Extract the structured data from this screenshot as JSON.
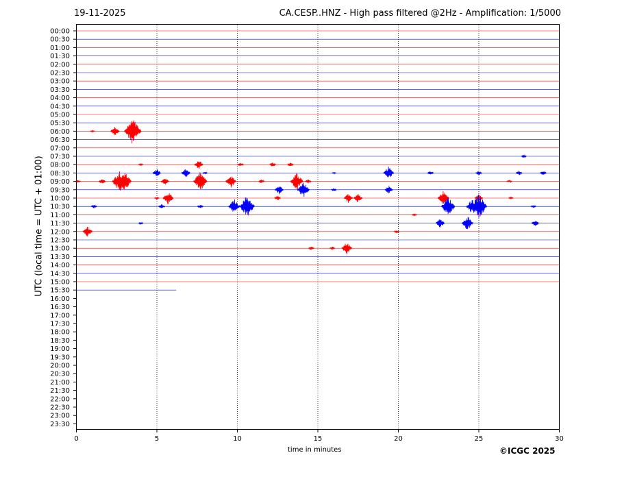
{
  "header": {
    "date": "19-11-2025",
    "title": "CA.CESP..HNZ - High pass filtered @2Hz - Amplification: 1/5000"
  },
  "footer": {
    "copyright": "©ICGC 2025"
  },
  "chart_data": {
    "type": "line",
    "chart_kind": "helicorder",
    "xlabel": "time in minutes",
    "ylabel": "UTC (local time = UTC + 01:00)",
    "xlim": [
      0,
      30
    ],
    "x_ticks": [
      0,
      5,
      10,
      15,
      20,
      25,
      30
    ],
    "grid_x": true,
    "colors": {
      "even_row": "#ff0000",
      "odd_row": "#0000ff",
      "grid": "#000000"
    },
    "rows": [
      "00:00",
      "00:30",
      "01:00",
      "01:30",
      "02:00",
      "02:30",
      "03:00",
      "03:30",
      "04:00",
      "04:30",
      "05:00",
      "05:30",
      "06:00",
      "06:30",
      "07:00",
      "07:30",
      "08:00",
      "08:30",
      "09:00",
      "09:30",
      "10:00",
      "10:30",
      "11:00",
      "11:30",
      "12:00",
      "12:30",
      "13:00",
      "13:30",
      "14:00",
      "14:30",
      "15:00",
      "15:30",
      "16:00",
      "16:30",
      "17:00",
      "17:30",
      "18:00",
      "18:30",
      "19:00",
      "19:30",
      "20:00",
      "20:30",
      "21:00",
      "21:30",
      "22:00",
      "22:30",
      "23:00",
      "23:30"
    ],
    "data_rows": 32,
    "last_row_end_minute": 6.2,
    "bursts": [
      {
        "row": "06:00",
        "minute": 1.0,
        "amplitude": 0.1
      },
      {
        "row": "06:00",
        "minute": 2.4,
        "amplitude": 0.6
      },
      {
        "row": "06:00",
        "minute": 3.4,
        "amplitude": 0.7
      },
      {
        "row": "06:00",
        "minute": 3.5,
        "amplitude": 1.6
      },
      {
        "row": "07:30",
        "minute": 27.8,
        "amplitude": 0.2
      },
      {
        "row": "08:00",
        "minute": 4.0,
        "amplitude": 0.15
      },
      {
        "row": "08:00",
        "minute": 7.6,
        "amplitude": 0.6
      },
      {
        "row": "08:00",
        "minute": 10.2,
        "amplitude": 0.25
      },
      {
        "row": "08:00",
        "minute": 12.2,
        "amplitude": 0.3
      },
      {
        "row": "08:00",
        "minute": 13.3,
        "amplitude": 0.25
      },
      {
        "row": "08:30",
        "minute": 5.0,
        "amplitude": 0.5
      },
      {
        "row": "08:30",
        "minute": 6.8,
        "amplitude": 0.6
      },
      {
        "row": "08:30",
        "minute": 8.0,
        "amplitude": 0.15
      },
      {
        "row": "08:30",
        "minute": 16.0,
        "amplitude": 0.1
      },
      {
        "row": "08:30",
        "minute": 19.4,
        "amplitude": 0.8
      },
      {
        "row": "08:30",
        "minute": 22.0,
        "amplitude": 0.3
      },
      {
        "row": "08:30",
        "minute": 25.0,
        "amplitude": 0.3
      },
      {
        "row": "08:30",
        "minute": 27.5,
        "amplitude": 0.3
      },
      {
        "row": "08:30",
        "minute": 29.0,
        "amplitude": 0.3
      },
      {
        "row": "09:00",
        "minute": 0.1,
        "amplitude": 0.2
      },
      {
        "row": "09:00",
        "minute": 1.6,
        "amplitude": 0.35
      },
      {
        "row": "09:00",
        "minute": 2.7,
        "amplitude": 1.4
      },
      {
        "row": "09:00",
        "minute": 3.0,
        "amplitude": 1.2
      },
      {
        "row": "09:00",
        "minute": 5.5,
        "amplitude": 0.5
      },
      {
        "row": "09:00",
        "minute": 7.7,
        "amplitude": 1.2
      },
      {
        "row": "09:00",
        "minute": 9.6,
        "amplitude": 0.8
      },
      {
        "row": "09:00",
        "minute": 11.5,
        "amplitude": 0.25
      },
      {
        "row": "09:00",
        "minute": 13.7,
        "amplitude": 1.1
      },
      {
        "row": "09:00",
        "minute": 14.4,
        "amplitude": 0.3
      },
      {
        "row": "09:00",
        "minute": 26.9,
        "amplitude": 0.2
      },
      {
        "row": "09:30",
        "minute": 12.6,
        "amplitude": 0.6
      },
      {
        "row": "09:30",
        "minute": 14.1,
        "amplitude": 1.0
      },
      {
        "row": "09:30",
        "minute": 16.0,
        "amplitude": 0.2
      },
      {
        "row": "09:30",
        "minute": 19.4,
        "amplitude": 0.5
      },
      {
        "row": "10:00",
        "minute": 5.0,
        "amplitude": 0.15
      },
      {
        "row": "10:00",
        "minute": 5.7,
        "amplitude": 0.8
      },
      {
        "row": "10:00",
        "minute": 12.5,
        "amplitude": 0.3
      },
      {
        "row": "10:00",
        "minute": 16.9,
        "amplitude": 0.6
      },
      {
        "row": "10:00",
        "minute": 17.5,
        "amplitude": 0.6
      },
      {
        "row": "10:00",
        "minute": 22.8,
        "amplitude": 0.9
      },
      {
        "row": "10:00",
        "minute": 25.0,
        "amplitude": 0.5
      },
      {
        "row": "10:00",
        "minute": 27.0,
        "amplitude": 0.15
      },
      {
        "row": "10:30",
        "minute": 1.1,
        "amplitude": 0.25
      },
      {
        "row": "10:30",
        "minute": 5.3,
        "amplitude": 0.3
      },
      {
        "row": "10:30",
        "minute": 7.7,
        "amplitude": 0.25
      },
      {
        "row": "10:30",
        "minute": 9.8,
        "amplitude": 0.9
      },
      {
        "row": "10:30",
        "minute": 10.6,
        "amplitude": 1.4
      },
      {
        "row": "10:30",
        "minute": 23.1,
        "amplitude": 1.2
      },
      {
        "row": "10:30",
        "minute": 24.6,
        "amplitude": 1.0
      },
      {
        "row": "10:30",
        "minute": 25.0,
        "amplitude": 1.5
      },
      {
        "row": "10:30",
        "minute": 28.4,
        "amplitude": 0.2
      },
      {
        "row": "11:00",
        "minute": 21.0,
        "amplitude": 0.15
      },
      {
        "row": "11:30",
        "minute": 4.0,
        "amplitude": 0.15
      },
      {
        "row": "11:30",
        "minute": 22.6,
        "amplitude": 0.6
      },
      {
        "row": "11:30",
        "minute": 24.3,
        "amplitude": 0.9
      },
      {
        "row": "11:30",
        "minute": 28.5,
        "amplitude": 0.4
      },
      {
        "row": "12:00",
        "minute": 0.7,
        "amplitude": 0.7
      },
      {
        "row": "12:00",
        "minute": 19.9,
        "amplitude": 0.2
      },
      {
        "row": "13:00",
        "minute": 14.6,
        "amplitude": 0.25
      },
      {
        "row": "13:00",
        "minute": 15.9,
        "amplitude": 0.2
      },
      {
        "row": "13:00",
        "minute": 16.8,
        "amplitude": 0.8
      }
    ]
  }
}
